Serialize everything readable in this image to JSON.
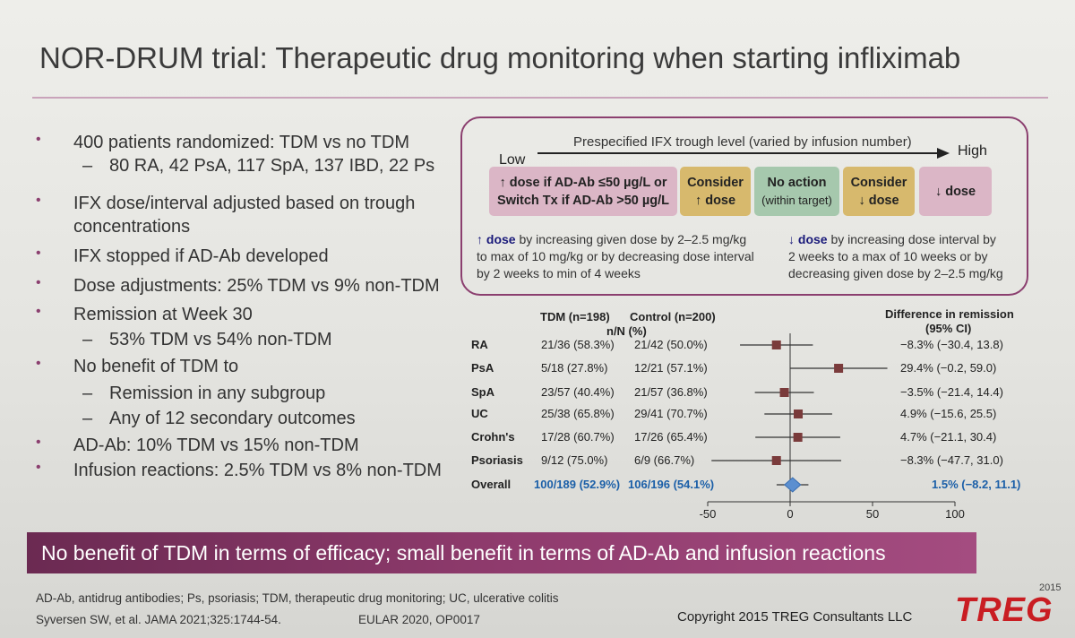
{
  "title": "NOR-DRUM trial: Therapeutic drug monitoring when starting infliximab",
  "bullets": [
    {
      "level": 1,
      "text": "400 patients randomized: TDM vs no TDM"
    },
    {
      "level": 2,
      "text": "80 RA, 42 PsA, 117 SpA, 137 IBD, 22 Ps"
    },
    {
      "level": 1,
      "text": "IFX dose/interval adjusted based on trough"
    },
    {
      "level": 0,
      "text": "concentrations"
    },
    {
      "level": 1,
      "text": "IFX stopped if AD-Ab developed"
    },
    {
      "level": 1,
      "text": "Dose adjustments: 25% TDM vs 9% non-TDM"
    },
    {
      "level": 1,
      "text": "Remission at Week 30"
    },
    {
      "level": 2,
      "text": "53% TDM vs 54% non-TDM"
    },
    {
      "level": 1,
      "text": "No benefit of TDM to"
    },
    {
      "level": 2,
      "text": "Remission in any subgroup"
    },
    {
      "level": 2,
      "text": "Any of 12 secondary outcomes"
    },
    {
      "level": 1,
      "text": "AD-Ab: 10% TDM vs 15% non-TDM"
    },
    {
      "level": 1,
      "text": "Infusion reactions: 2.5% TDM vs 8% non-TDM"
    }
  ],
  "trough_box": {
    "arrow_label": "Prespecified IFX trough level (varied by infusion number)",
    "low": "Low",
    "high": "High",
    "zones": [
      {
        "line1": "↑ dose if AD-Ab ≤50 µg/L or",
        "line2": "Switch Tx if AD-Ab >50 µg/L"
      },
      {
        "line1": "Consider",
        "line2": "↑ dose"
      },
      {
        "line1": "No action",
        "line2": "(within target)"
      },
      {
        "line1": "Consider",
        "line2": "↓ dose"
      },
      {
        "line1": "↓ dose",
        "line2": ""
      }
    ],
    "up_dose_bold": "↑ dose",
    "up_dose_text": [
      " by increasing given dose by 2–2.5 mg/kg",
      "to max of 10 mg/kg or by decreasing dose interval",
      "by 2 weeks to min of 4 weeks"
    ],
    "down_dose_bold": "↓ dose",
    "down_dose_text": [
      " by increasing dose interval by",
      "2 weeks to a max of 10 weeks or by",
      "decreasing given dose by 2–2.5 mg/kg"
    ]
  },
  "forest": {
    "col_tdm": "TDM (n=198)",
    "col_control": "Control (n=200)",
    "col_nn": "n/N (%)",
    "col_diff": "Difference in remission",
    "col_ci": "(95% CI)",
    "xticks": [
      "-50",
      "0",
      "50",
      "100"
    ]
  },
  "chart_data": {
    "type": "forest",
    "xlim": [
      -50,
      100
    ],
    "rows": [
      {
        "label": "RA",
        "tdm": "21/36 (58.3%)",
        "control": "21/42 (50.0%)",
        "diff_text": "−8.3% (−30.4, 13.8)",
        "est": -8.3,
        "lo": -30.4,
        "hi": 13.8
      },
      {
        "label": "PsA",
        "tdm": "5/18 (27.8%)",
        "control": "12/21 (57.1%)",
        "diff_text": "29.4% (−0.2, 59.0)",
        "est": 29.4,
        "lo": -0.2,
        "hi": 59.0
      },
      {
        "label": "SpA",
        "tdm": "23/57 (40.4%)",
        "control": "21/57 (36.8%)",
        "diff_text": "−3.5% (−21.4, 14.4)",
        "est": -3.5,
        "lo": -21.4,
        "hi": 14.4
      },
      {
        "label": "UC",
        "tdm": "25/38 (65.8%)",
        "control": "29/41 (70.7%)",
        "diff_text": "4.9% (−15.6, 25.5)",
        "est": 4.9,
        "lo": -15.6,
        "hi": 25.5
      },
      {
        "label": "Crohn's",
        "tdm": "17/28 (60.7%)",
        "control": "17/26 (65.4%)",
        "diff_text": "4.7% (−21.1, 30.4)",
        "est": 4.7,
        "lo": -21.1,
        "hi": 30.4
      },
      {
        "label": "Psoriasis",
        "tdm": "9/12 (75.0%)",
        "control": "6/9 (66.7%)",
        "diff_text": "−8.3% (−47.7, 31.0)",
        "est": -8.3,
        "lo": -47.7,
        "hi": 31.0
      },
      {
        "label": "Overall",
        "tdm": "100/189 (52.9%)",
        "control": "106/196 (54.1%)",
        "diff_text": "1.5% (−8.2, 11.1)",
        "est": 1.5,
        "lo": -8.2,
        "hi": 11.1,
        "overall": true
      }
    ]
  },
  "banner": "No benefit of TDM in terms of efficacy; small benefit in terms of AD-Ab and infusion reactions",
  "footnote1": "AD-Ab, antidrug antibodies; Ps, psoriasis; TDM, therapeutic drug monitoring; UC, ulcerative colitis",
  "footnote2": "Syversen SW, et al. JAMA 2021;325:1744-54.",
  "footnote3": "EULAR 2020, OP0017",
  "copyright": "Copyright 2015 TREG Consultants LLC",
  "logo": "TREG",
  "logo_year": "2015",
  "colors": {
    "accent": "#8b3f6f",
    "banner": "#8f3b6d",
    "blue": "#1b5fa8",
    "logo_red": "#c91d22"
  }
}
